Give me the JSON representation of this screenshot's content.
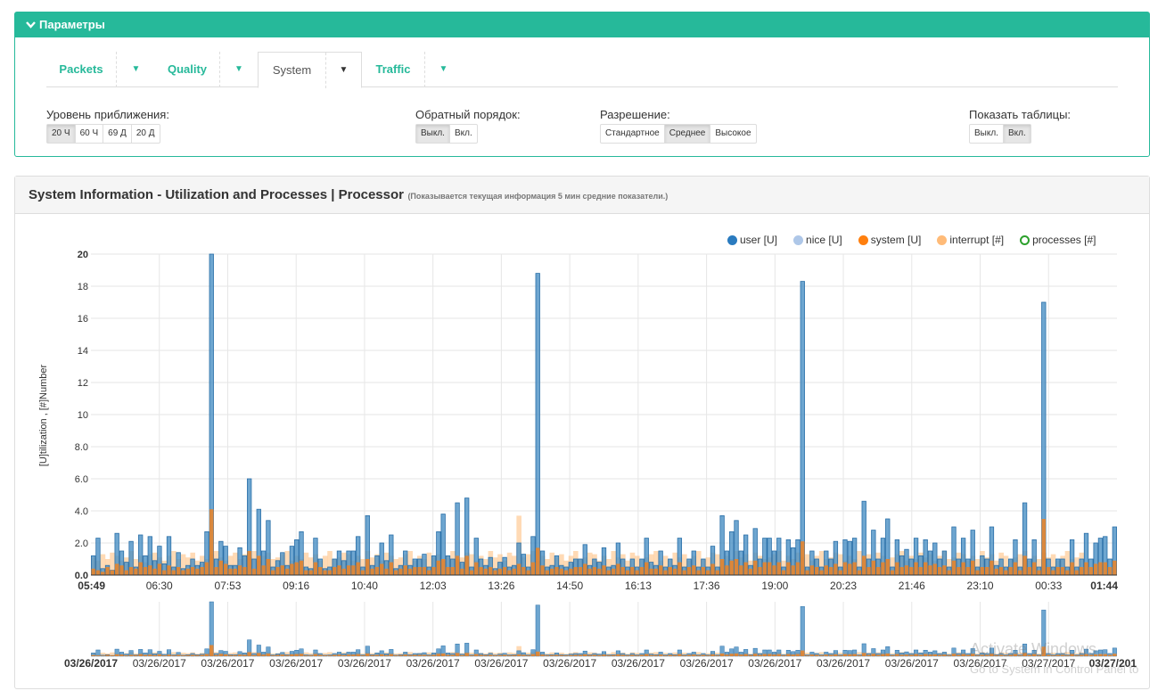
{
  "params": {
    "title": "Параметры",
    "tabs": [
      {
        "label": "Packets",
        "active": false
      },
      {
        "label": "Quality",
        "active": false
      },
      {
        "label": "System",
        "active": true
      },
      {
        "label": "Traffic",
        "active": false
      }
    ],
    "zoom": {
      "label": "Уровень приближения:",
      "options": [
        "20 Ч",
        "60 Ч",
        "69 Д",
        "20 Д"
      ],
      "selected": "20 Ч"
    },
    "reverse": {
      "label": "Обратный порядок:",
      "options": [
        "Выкл.",
        "Вкл."
      ],
      "selected": "Выкл."
    },
    "resolution": {
      "label": "Разрешение:",
      "options": [
        "Стандартное",
        "Среднее",
        "Высокое"
      ],
      "selected": "Среднее"
    },
    "tables": {
      "label": "Показать таблицы:",
      "options": [
        "Выкл.",
        "Вкл."
      ],
      "selected": "Вкл."
    }
  },
  "panel": {
    "title": "System Information - Utilization and Processes | Processor",
    "subtitle": "(Показывается текущая информация 5 мин средние показатели.)"
  },
  "watermark": {
    "line1": "Activate Windows",
    "line2": "Go to System in Control Panel to"
  },
  "colors": {
    "user": "#4a90c4",
    "user_stroke": "#2a6fa8",
    "nice": "#aec7e8",
    "system": "#ff7f0e",
    "interrupt": "#ffbb78",
    "processes": "#2ca02c",
    "accent": "#26b99a"
  },
  "chart_data": {
    "type": "bar",
    "ylabel": "[U]tilization , [#]Number",
    "ylim": [
      0,
      20
    ],
    "yticks": [
      "0.0",
      "2.0",
      "4.0",
      "6.0",
      "8.0",
      "10",
      "12",
      "14",
      "16",
      "18",
      "20"
    ],
    "xticks": [
      "05:49",
      "06:30",
      "07:53",
      "09:16",
      "10:40",
      "12:03",
      "13:26",
      "14:50",
      "16:13",
      "17:36",
      "19:00",
      "20:23",
      "21:46",
      "23:10",
      "00:33",
      "01:44"
    ],
    "xticks_bold": [
      "05:49",
      "01:44"
    ],
    "overview_ticks": [
      "03/26/2017",
      "03/26/2017",
      "03/26/2017",
      "03/26/2017",
      "03/26/2017",
      "03/26/2017",
      "03/26/2017",
      "03/26/2017",
      "03/26/2017",
      "03/26/2017",
      "03/26/2017",
      "03/26/2017",
      "03/26/2017",
      "03/26/2017",
      "03/27/2017",
      "03/27/201"
    ],
    "series": [
      {
        "name": "user [U]",
        "values": [
          1.2,
          2.3,
          0.4,
          0.6,
          0.3,
          2.6,
          1.5,
          0.8,
          2.1,
          0.5,
          2.5,
          1.2,
          2.4,
          0.9,
          1.8,
          0.7,
          2.4,
          0.5,
          1.4,
          0.4,
          0.6,
          1.0,
          0.6,
          0.8,
          2.7,
          20.0,
          1.0,
          2.1,
          1.8,
          0.6,
          0.6,
          1.7,
          1.2,
          6.0,
          1.0,
          4.1,
          1.5,
          3.4,
          0.5,
          0.9,
          1.4,
          0.6,
          1.8,
          2.2,
          2.7,
          0.5,
          0.4,
          2.3,
          1.0,
          0.4,
          0.5,
          1.0,
          1.5,
          0.9,
          1.5,
          1.5,
          2.4,
          0.5,
          3.7,
          0.6,
          1.2,
          2.0,
          0.9,
          2.5,
          0.4,
          0.6,
          1.5,
          0.6,
          1.0,
          1.0,
          1.3,
          0.5,
          1.2,
          2.7,
          3.8,
          1.2,
          1.0,
          4.5,
          0.8,
          4.8,
          0.5,
          2.3,
          1.0,
          0.6,
          1.1,
          0.4,
          0.8,
          1.1,
          0.5,
          0.6,
          2.0,
          1.3,
          0.5,
          2.4,
          18.8,
          1.5,
          0.5,
          0.6,
          1.2,
          0.6,
          0.5,
          0.8,
          1.0,
          1.0,
          1.9,
          0.6,
          1.0,
          0.8,
          1.7,
          0.5,
          0.6,
          2.0,
          1.0,
          0.5,
          1.0,
          0.5,
          1.0,
          2.3,
          0.8,
          0.6,
          1.5,
          0.5,
          1.0,
          0.6,
          2.3,
          0.5,
          1.0,
          1.5,
          0.5,
          1.0,
          0.5,
          1.8,
          0.5,
          3.7,
          1.5,
          2.7,
          3.4,
          1.5,
          2.5,
          0.6,
          2.9,
          1.0,
          2.3,
          2.3,
          1.5,
          2.3,
          0.5,
          2.2,
          1.7,
          2.2,
          18.3,
          0.5,
          1.5,
          1.0,
          0.5,
          1.5,
          1.0,
          2.1,
          0.5,
          2.2,
          2.1,
          2.3,
          0.5,
          4.6,
          1.0,
          2.8,
          1.0,
          2.3,
          3.5,
          0.5,
          2.2,
          1.2,
          1.6,
          1.0,
          2.3,
          1.2,
          2.2,
          1.5,
          2.0,
          1.0,
          1.5,
          0.5,
          3.0,
          1.0,
          2.3,
          1.0,
          2.8,
          0.5,
          1.2,
          1.0,
          3.0,
          0.6,
          1.0,
          0.5,
          1.0,
          2.2,
          0.5,
          4.5,
          1.0,
          2.2,
          0.5,
          17.0,
          1.0,
          0.5,
          1.0,
          1.0,
          0.5,
          2.2,
          0.5,
          1.0,
          2.6,
          1.0,
          2.0,
          2.3,
          2.4,
          1.0,
          3.0
        ]
      },
      {
        "name": "nice [U]",
        "values": []
      },
      {
        "name": "system [U]",
        "values": [
          0.4,
          0.3,
          0.2,
          0.5,
          0.3,
          0.7,
          0.6,
          0.3,
          0.5,
          0.4,
          0.8,
          0.5,
          0.6,
          0.4,
          0.7,
          0.3,
          0.6,
          0.3,
          0.5,
          0.3,
          0.4,
          0.5,
          0.4,
          0.5,
          0.8,
          4.1,
          0.5,
          0.9,
          0.7,
          0.4,
          0.4,
          0.6,
          0.5,
          1.5,
          0.4,
          1.2,
          0.6,
          1.0,
          0.3,
          0.5,
          0.6,
          0.4,
          0.7,
          0.8,
          0.9,
          0.3,
          0.3,
          0.8,
          0.5,
          0.3,
          0.3,
          0.5,
          0.6,
          0.4,
          0.6,
          0.6,
          0.8,
          0.3,
          1.0,
          0.4,
          0.5,
          0.7,
          0.4,
          0.8,
          0.3,
          0.4,
          0.6,
          0.4,
          0.5,
          0.5,
          0.5,
          0.3,
          0.5,
          0.9,
          1.0,
          0.5,
          0.5,
          1.2,
          0.4,
          1.2,
          0.3,
          0.8,
          0.5,
          0.4,
          0.5,
          0.3,
          0.4,
          0.5,
          0.3,
          0.4,
          0.7,
          0.5,
          0.3,
          0.8,
          1.7,
          0.6,
          0.3,
          0.4,
          0.5,
          0.4,
          0.3,
          0.4,
          0.5,
          0.5,
          0.7,
          0.4,
          0.5,
          0.4,
          0.6,
          0.3,
          0.4,
          0.7,
          0.5,
          0.3,
          0.5,
          0.3,
          0.5,
          0.8,
          0.4,
          0.4,
          0.6,
          0.3,
          0.5,
          0.4,
          0.8,
          0.3,
          0.5,
          0.6,
          0.3,
          0.5,
          0.3,
          0.7,
          0.3,
          1.0,
          0.6,
          0.9,
          1.0,
          0.6,
          0.8,
          0.4,
          0.9,
          0.5,
          0.8,
          0.8,
          0.6,
          0.8,
          0.3,
          0.8,
          0.6,
          0.8,
          2.1,
          0.3,
          0.6,
          0.5,
          0.3,
          0.6,
          0.5,
          0.7,
          0.3,
          0.8,
          0.7,
          0.8,
          0.3,
          1.2,
          0.5,
          0.9,
          0.5,
          0.8,
          1.0,
          0.3,
          0.8,
          0.5,
          0.6,
          0.5,
          0.8,
          0.5,
          0.8,
          0.6,
          0.7,
          0.5,
          0.6,
          0.3,
          0.9,
          0.5,
          0.8,
          0.5,
          0.9,
          0.3,
          0.5,
          0.5,
          0.9,
          0.4,
          0.5,
          0.3,
          0.5,
          0.8,
          0.3,
          1.2,
          0.5,
          0.8,
          0.3,
          3.5,
          0.5,
          0.3,
          0.5,
          0.5,
          0.3,
          0.8,
          0.3,
          0.5,
          0.8,
          0.5,
          0.7,
          0.8,
          0.8,
          0.5,
          0.9
        ]
      },
      {
        "name": "interrupt [#]",
        "values": [
          1.1,
          0.9,
          1.3,
          1.0,
          1.4,
          1.2,
          0.9,
          1.1,
          1.5,
          1.0,
          1.2,
          0.8,
          1.3,
          1.4,
          1.1,
          0.9,
          1.2,
          1.5,
          1.0,
          1.3,
          1.1,
          1.4,
          0.9,
          1.2,
          1.0,
          1.3,
          1.5,
          1.1,
          0.9,
          1.2,
          1.4,
          1.0,
          1.3,
          1.1,
          1.5,
          0.9,
          1.2,
          1.4,
          1.0,
          1.1,
          1.3,
          1.5,
          0.9,
          1.2,
          1.0,
          1.4,
          1.1,
          1.3,
          0.9,
          1.2,
          1.5,
          1.0,
          1.1,
          1.4,
          1.3,
          0.9,
          1.2,
          1.0,
          1.5,
          1.1,
          1.3,
          0.9,
          1.4,
          1.2,
          1.0,
          1.1,
          1.3,
          1.5,
          0.9,
          1.2,
          1.0,
          1.4,
          1.1,
          1.3,
          0.9,
          1.2,
          1.5,
          1.0,
          1.1,
          1.4,
          1.3,
          0.9,
          1.2,
          1.0,
          1.5,
          1.1,
          1.3,
          0.9,
          1.4,
          1.2,
          3.7,
          1.1,
          1.3,
          1.5,
          0.9,
          1.2,
          1.0,
          1.4,
          1.1,
          1.3,
          0.9,
          1.2,
          1.5,
          1.0,
          1.1,
          1.4,
          1.3,
          0.9,
          1.2,
          1.0,
          1.5,
          1.1,
          1.3,
          0.9,
          1.4,
          1.2,
          1.0,
          1.1,
          1.3,
          1.5,
          0.9,
          1.2,
          1.0,
          1.4,
          1.1,
          1.3,
          0.9,
          1.2,
          1.5,
          1.0,
          1.1,
          1.4,
          1.3,
          0.9,
          1.2,
          1.0,
          1.5,
          1.1,
          1.3,
          0.9,
          1.4,
          1.2,
          1.0,
          1.1,
          1.3,
          1.5,
          0.9,
          1.2,
          1.0,
          1.4,
          1.1,
          1.3,
          0.9,
          1.2,
          1.5,
          1.0,
          1.1,
          1.4,
          1.3,
          0.9,
          1.2,
          1.0,
          1.5,
          1.1,
          1.3,
          0.9,
          1.4,
          1.2,
          1.0,
          1.1,
          1.3,
          1.5,
          0.9,
          1.2,
          1.0,
          1.4,
          1.1,
          1.3,
          0.9,
          1.2,
          1.5,
          1.0,
          1.1,
          1.4,
          1.3,
          0.9,
          1.2,
          1.0,
          1.5,
          1.1,
          1.3,
          0.9,
          1.4,
          1.2,
          1.0,
          1.1,
          1.3,
          1.5,
          0.9,
          1.2,
          1.0,
          1.4,
          1.1,
          1.3,
          0.9,
          1.2,
          1.5,
          1.0,
          1.1,
          1.4
        ]
      },
      {
        "name": "processes [#]",
        "values": []
      }
    ],
    "grid": true,
    "legend_position": "top-right"
  }
}
